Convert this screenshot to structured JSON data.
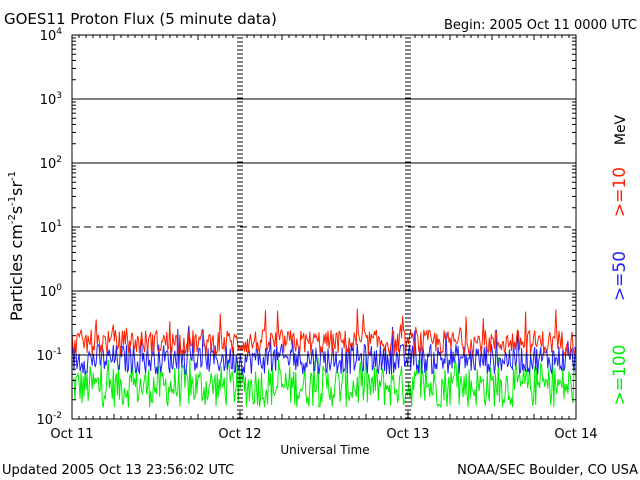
{
  "header": {
    "title": "GOES11 Proton Flux (5 minute data)",
    "begin": "Begin: 2005 Oct 11 0000 UTC"
  },
  "footer": {
    "updated": "Updated 2005 Oct 13 23:56:02 UTC",
    "credit": "NOAA/SEC Boulder, CO USA"
  },
  "chart_data": {
    "type": "line",
    "xlabel": "Universal Time",
    "ylabel_main": "Particles cm",
    "ylabel_sup1": "-2",
    "ylabel_mid1": "s",
    "ylabel_sup2": "-1",
    "ylabel_mid2": "sr",
    "ylabel_sup3": "-1",
    "y_scale": "log",
    "ylim": [
      0.01,
      10000
    ],
    "y_tick_base": "10",
    "y_tick_exponents": [
      "-2",
      "-1",
      "0",
      "1",
      "2",
      "3",
      "4"
    ],
    "x_ticks": [
      "Oct 11",
      "Oct 12",
      "Oct 13",
      "Oct 14"
    ],
    "grid": "horizontal lines at each decade; dashed at 10^1; dashed vertical markers at day boundaries",
    "legend_placement": "right, vertical",
    "legend_unit": "MeV",
    "series": [
      {
        "name": ">=10",
        "color": "#ff2000",
        "typical_range": [
          0.1,
          0.25
        ],
        "peak": 0.55
      },
      {
        "name": ">=50",
        "color": "#2020ff",
        "typical_range": [
          0.05,
          0.15
        ],
        "peak": 0.3
      },
      {
        "name": ">=100",
        "color": "#00ee00",
        "typical_range": [
          0.015,
          0.07
        ],
        "peak": 0.1
      }
    ]
  }
}
